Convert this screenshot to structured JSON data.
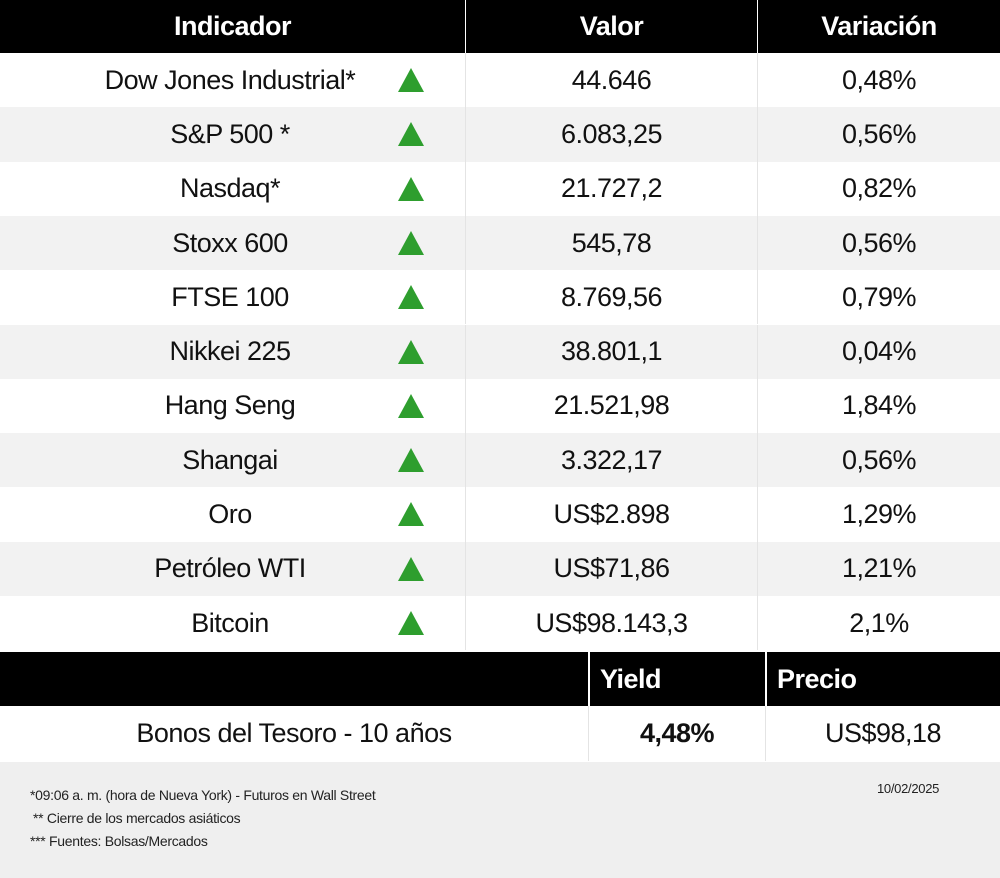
{
  "table": {
    "headers": [
      "Indicador",
      "Valor",
      "Variación"
    ],
    "rows": [
      [
        "Dow Jones Industrial*",
        "44.646",
        "0,48%"
      ],
      [
        "S&P 500 *",
        "6.083,25",
        "0,56%"
      ],
      [
        "Nasdaq*",
        "21.727,2",
        "0,82%"
      ],
      [
        "Stoxx 600",
        "545,78",
        "0,56%"
      ],
      [
        "FTSE 100",
        "8.769,56",
        "0,79%"
      ],
      [
        "Nikkei 225",
        "38.801,1",
        "0,04%"
      ],
      [
        "Hang Seng",
        "21.521,98",
        "1,84%"
      ],
      [
        "Shangai",
        "3.322,17",
        "0,56%"
      ],
      [
        "Oro",
        "US$2.898",
        "1,29%"
      ],
      [
        "Petróleo WTI",
        "US$71,86",
        "1,21%"
      ],
      [
        "Bitcoin",
        "US$98.143,3",
        "2,1%"
      ]
    ]
  },
  "bonds": {
    "headers": [
      "Yield",
      "Precio"
    ],
    "row": [
      "Bonos del Tesoro - 10 años",
      "4,48%",
      "US$98,18"
    ]
  },
  "footer": {
    "notes": [
      "*09:06 a. m. (hora de Nueva York)  - Futuros en Wall Street",
      "** Cierre de los mercados asiáticos",
      "*** Fuentes: Bolsas/Mercados"
    ],
    "date": "10/02/2025"
  }
}
